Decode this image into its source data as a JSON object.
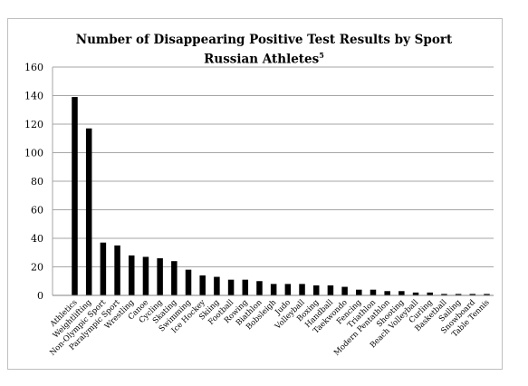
{
  "chart_data": {
    "type": "bar",
    "title": "Number of Disappearing Positive Test Results by Sport",
    "subtitle": "Russian Athletes",
    "subtitle_sup": "5",
    "xlabel": "",
    "ylabel": "",
    "ylim": [
      0,
      160
    ],
    "yticks": [
      "0",
      "20",
      "40",
      "60",
      "80",
      "100",
      "120",
      "140",
      "160"
    ],
    "grid": true,
    "bar_color": "#000000",
    "grid_color": "#a6a6a6",
    "categories": [
      "Athletics",
      "Weightlifting",
      "Non-Olympic Sport",
      "Paralympic Sport",
      "Wrestling",
      "Canoe",
      "Cycling",
      "Skating",
      "Swimming",
      "Ice Hockey",
      "Skiing",
      "Football",
      "Rowing",
      "Biathlon",
      "Bobsleigh",
      "Judo",
      "Volleyball",
      "Boxing",
      "Handball",
      "Taekwondo",
      "Fencing",
      "Triathlon",
      "Modern Pentathlon",
      "Shooting",
      "Beach Volleyball",
      "Curling",
      "Basketball",
      "Sailing",
      "Snowboard",
      "Table Tennis"
    ],
    "values": [
      139,
      117,
      37,
      35,
      28,
      27,
      26,
      24,
      18,
      14,
      13,
      11,
      11,
      10,
      8,
      8,
      8,
      7,
      7,
      6,
      4,
      4,
      3,
      3,
      2,
      2,
      1,
      1,
      1,
      1
    ]
  }
}
